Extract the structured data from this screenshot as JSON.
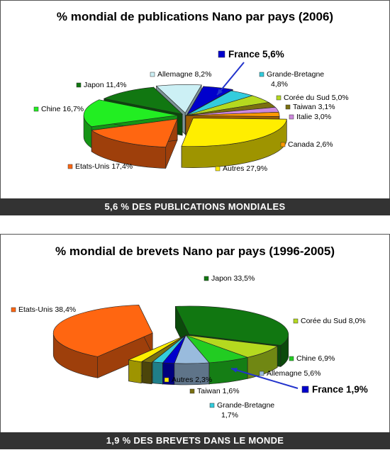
{
  "chart_data": [
    {
      "type": "pie",
      "title": "% mondial de publications Nano par pays (2006)",
      "banner": "5,6 % DES PUBLICATIONS MONDIALES",
      "highlight": "France 5,6%",
      "slices": [
        {
          "name": "France",
          "value": 5.6,
          "label": "France 5,6%",
          "color": "#0000cc"
        },
        {
          "name": "Grande-Bretagne",
          "value": 4.8,
          "label": "Grande-Bretagne",
          "label2": "4,8%",
          "color": "#33ccdd"
        },
        {
          "name": "Corée du Sud",
          "value": 5.0,
          "label": "Corée du Sud 5,0%",
          "color": "#b5d91f"
        },
        {
          "name": "Taiwan",
          "value": 3.1,
          "label": "Taiwan 3,1%",
          "color": "#7a7010"
        },
        {
          "name": "Italie",
          "value": 3.0,
          "label": "Italie 3,0%",
          "color": "#cc88dd"
        },
        {
          "name": "Canada",
          "value": 2.6,
          "label": "Canada 2,6%",
          "color": "#ff9900"
        },
        {
          "name": "Autres",
          "value": 27.9,
          "label": "Autres 27,9%",
          "color": "#ffee00"
        },
        {
          "name": "Etats-Unis",
          "value": 17.4,
          "label": "Etats-Unis 17,4%",
          "color": "#ff6611"
        },
        {
          "name": "Chine",
          "value": 16.7,
          "label": "Chine 16,7%",
          "color": "#22ee22"
        },
        {
          "name": "Japon",
          "value": 11.4,
          "label": "Japon 11,4%",
          "color": "#117711"
        },
        {
          "name": "Allemagne",
          "value": 8.2,
          "label": "Allemagne 8,2%",
          "color": "#ccf0f5"
        }
      ]
    },
    {
      "type": "pie",
      "title": "% mondial de brevets Nano par pays (1996-2005)",
      "banner": "1,9 % DES BREVETS DANS LE MONDE",
      "highlight": "France 1,9%",
      "slices": [
        {
          "name": "Japon",
          "value": 33.5,
          "label": "Japon 33,5%",
          "color": "#117711"
        },
        {
          "name": "Corée du Sud",
          "value": 8.0,
          "label": "Corée du Sud 8,0%",
          "color": "#b5d91f"
        },
        {
          "name": "Chine",
          "value": 6.9,
          "label": "Chine 6,9%",
          "color": "#22cc22"
        },
        {
          "name": "Allemagne",
          "value": 5.6,
          "label": "Allemagne 5,6%",
          "color": "#99bbdd"
        },
        {
          "name": "France",
          "value": 1.9,
          "label": "France 1,9%",
          "color": "#0000cc"
        },
        {
          "name": "Grande-Bretagne",
          "value": 1.7,
          "label": "Grande-Bretagne",
          "label2": "1,7%",
          "color": "#33ccdd"
        },
        {
          "name": "Taiwan",
          "value": 1.6,
          "label": "Taiwan 1,6%",
          "color": "#7a7010"
        },
        {
          "name": "Autres",
          "value": 2.3,
          "label": "Autres 2,3%",
          "color": "#ffee00"
        },
        {
          "name": "Etats-Unis",
          "value": 38.4,
          "label": "Etats-Unis 38,4%",
          "color": "#ff6611"
        }
      ]
    }
  ]
}
